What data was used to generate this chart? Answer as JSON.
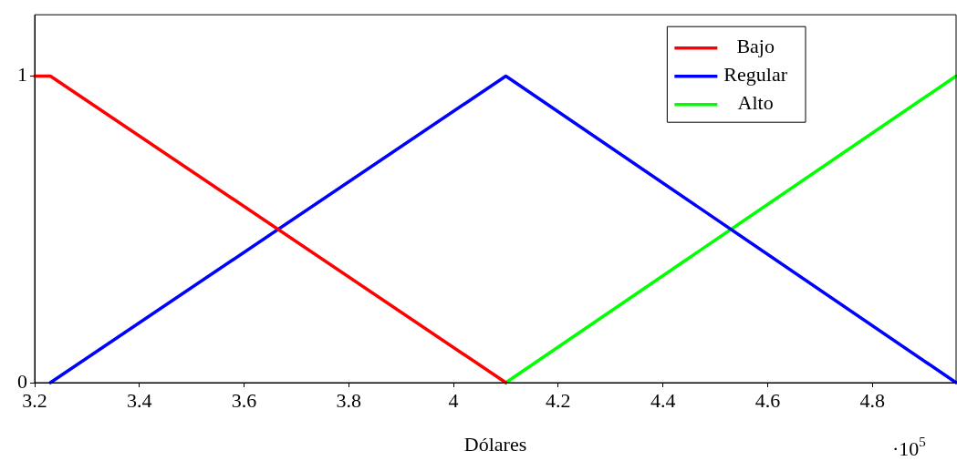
{
  "chart_data": {
    "type": "line",
    "xlabel": "Dólares",
    "annotations": [
      "·10$^{5}$"
    ],
    "xlim": [
      3.2,
      4.96
    ],
    "xticks": [
      3.2,
      3.4,
      3.6,
      3.8,
      4,
      4.2,
      4.4,
      4.6,
      4.8
    ],
    "ylim": [
      0,
      1.2
    ],
    "yticks": [
      0,
      1
    ],
    "legend": "top right",
    "marker": "none",
    "line_style": "solid",
    "series": [
      {
        "name": "Bajo",
        "color": "#ff0000",
        "x": [
          3.2,
          3.23,
          4.1
        ],
        "values": [
          1,
          1,
          0
        ]
      },
      {
        "name": "Regular",
        "color": "#0000ff",
        "x": [
          3.23,
          4.1,
          4.96
        ],
        "values": [
          0,
          1,
          0
        ]
      },
      {
        "name": "Alto",
        "color": "#00ff00",
        "x": [
          4.1,
          4.96
        ],
        "values": [
          0,
          1
        ]
      }
    ]
  }
}
